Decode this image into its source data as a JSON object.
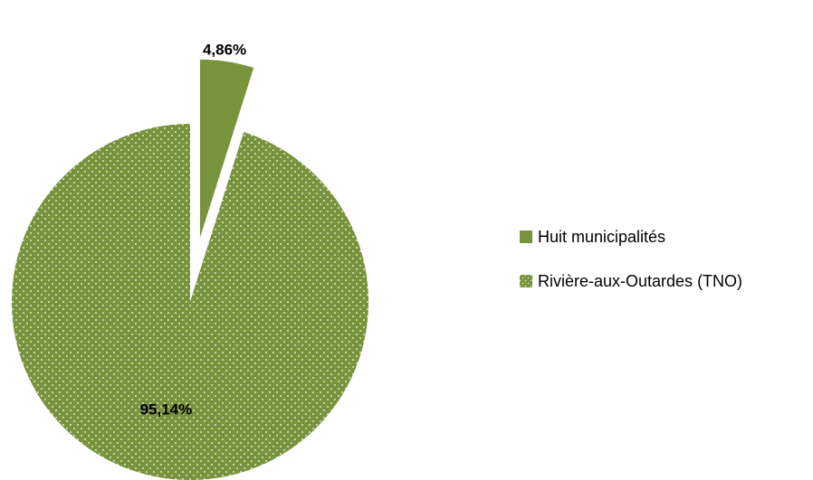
{
  "chart_data": {
    "type": "pie",
    "categories": [
      "Huit municipalités",
      "Rivière-aux-Outardes (TNO)"
    ],
    "values": [
      4.86,
      95.14
    ],
    "data_labels": [
      "4,86%",
      "95,14%"
    ],
    "colors": [
      "#77933c",
      "#77933c"
    ],
    "patterns": [
      "solid",
      "dotted"
    ],
    "exploded": [
      true,
      false
    ],
    "legend_position": "right",
    "title": ""
  }
}
